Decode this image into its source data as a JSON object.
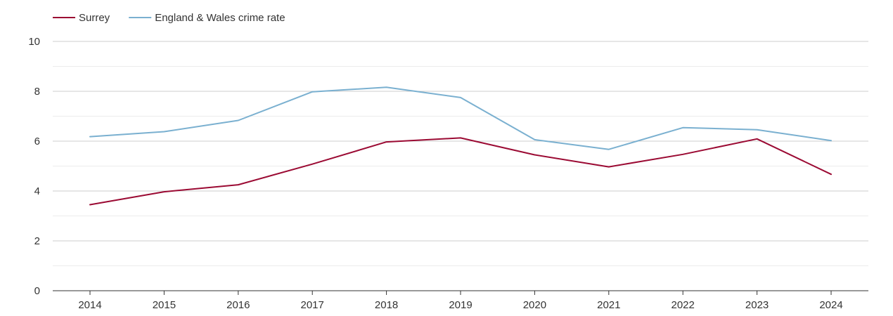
{
  "chart_data": {
    "type": "line",
    "title": "",
    "xlabel": "",
    "ylabel": "",
    "categories": [
      "2014",
      "2015",
      "2016",
      "2017",
      "2018",
      "2019",
      "2020",
      "2021",
      "2022",
      "2023",
      "2024"
    ],
    "ylim": [
      0,
      10
    ],
    "y_ticks": [
      "0",
      "2",
      "4",
      "6",
      "8",
      "10"
    ],
    "grid": true,
    "legend_position": "top-left",
    "series": [
      {
        "name": "Surrey",
        "color": "#9b0a33",
        "values": [
          3.45,
          3.97,
          4.25,
          5.08,
          5.97,
          6.13,
          5.45,
          4.97,
          5.47,
          6.09,
          4.67
        ]
      },
      {
        "name": "England & Wales crime rate",
        "color": "#7ab0d0",
        "values": [
          6.18,
          6.38,
          6.83,
          7.98,
          8.16,
          7.75,
          6.06,
          5.67,
          6.54,
          6.46,
          6.02
        ]
      }
    ]
  }
}
